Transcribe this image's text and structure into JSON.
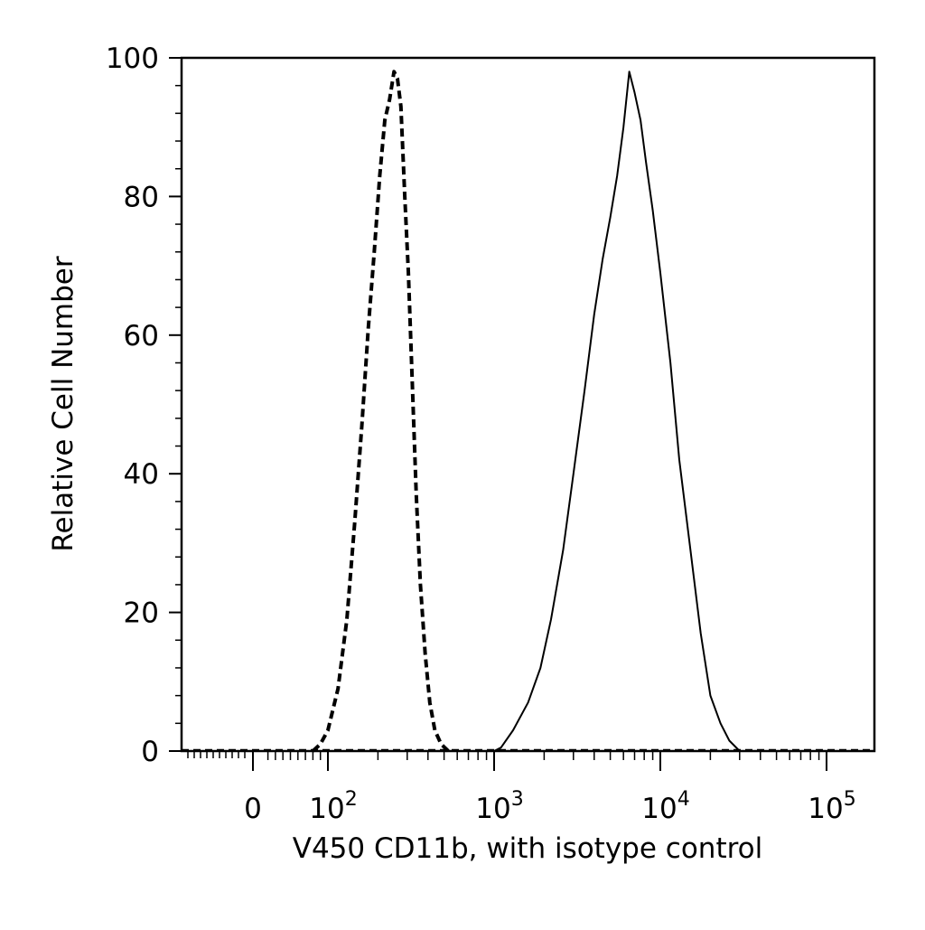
{
  "chart_data": {
    "type": "line",
    "xlabel": "V450 CD11b, with isotype control",
    "ylabel": "Relative Cell Number",
    "x_scale": "biexponential",
    "ylim": [
      0,
      100
    ],
    "y_ticks": [
      "0",
      "20",
      "40",
      "60",
      "80",
      "100"
    ],
    "x_ticks": [
      {
        "value": 0,
        "label": "0",
        "exp": ""
      },
      {
        "value": 100,
        "label": "10",
        "exp": "2"
      },
      {
        "value": 1000,
        "label": "10",
        "exp": "3"
      },
      {
        "value": 10000,
        "label": "10",
        "exp": "4"
      },
      {
        "value": 100000,
        "label": "10",
        "exp": "5"
      }
    ],
    "grid": false,
    "colors": {
      "line": "#000000",
      "background": "#ffffff"
    },
    "series": [
      {
        "style": "dashed",
        "points": [
          [
            80,
            0
          ],
          [
            90,
            1
          ],
          [
            100,
            3
          ],
          [
            115,
            9
          ],
          [
            130,
            19
          ],
          [
            145,
            33
          ],
          [
            160,
            47
          ],
          [
            175,
            61
          ],
          [
            190,
            72
          ],
          [
            205,
            83
          ],
          [
            220,
            91
          ],
          [
            235,
            94
          ],
          [
            250,
            98
          ],
          [
            262,
            97
          ],
          [
            275,
            93
          ],
          [
            290,
            80
          ],
          [
            305,
            69
          ],
          [
            320,
            55
          ],
          [
            340,
            37
          ],
          [
            360,
            24
          ],
          [
            385,
            14
          ],
          [
            410,
            7
          ],
          [
            440,
            3
          ],
          [
            480,
            1
          ],
          [
            530,
            0
          ]
        ]
      },
      {
        "style": "solid",
        "points": [
          [
            1000,
            0
          ],
          [
            1100,
            0.5
          ],
          [
            1300,
            3
          ],
          [
            1600,
            7
          ],
          [
            1900,
            12
          ],
          [
            2200,
            19
          ],
          [
            2600,
            29
          ],
          [
            3000,
            40
          ],
          [
            3500,
            52
          ],
          [
            4000,
            63
          ],
          [
            4500,
            71
          ],
          [
            5000,
            77
          ],
          [
            5500,
            83
          ],
          [
            6000,
            90
          ],
          [
            6500,
            98
          ],
          [
            7000,
            95
          ],
          [
            7600,
            91
          ],
          [
            8200,
            85
          ],
          [
            9000,
            78
          ],
          [
            10000,
            69
          ],
          [
            11500,
            56
          ],
          [
            13000,
            42
          ],
          [
            15000,
            30
          ],
          [
            17500,
            17
          ],
          [
            20000,
            8
          ],
          [
            23000,
            4
          ],
          [
            26000,
            1.5
          ],
          [
            30000,
            0
          ]
        ]
      }
    ]
  }
}
